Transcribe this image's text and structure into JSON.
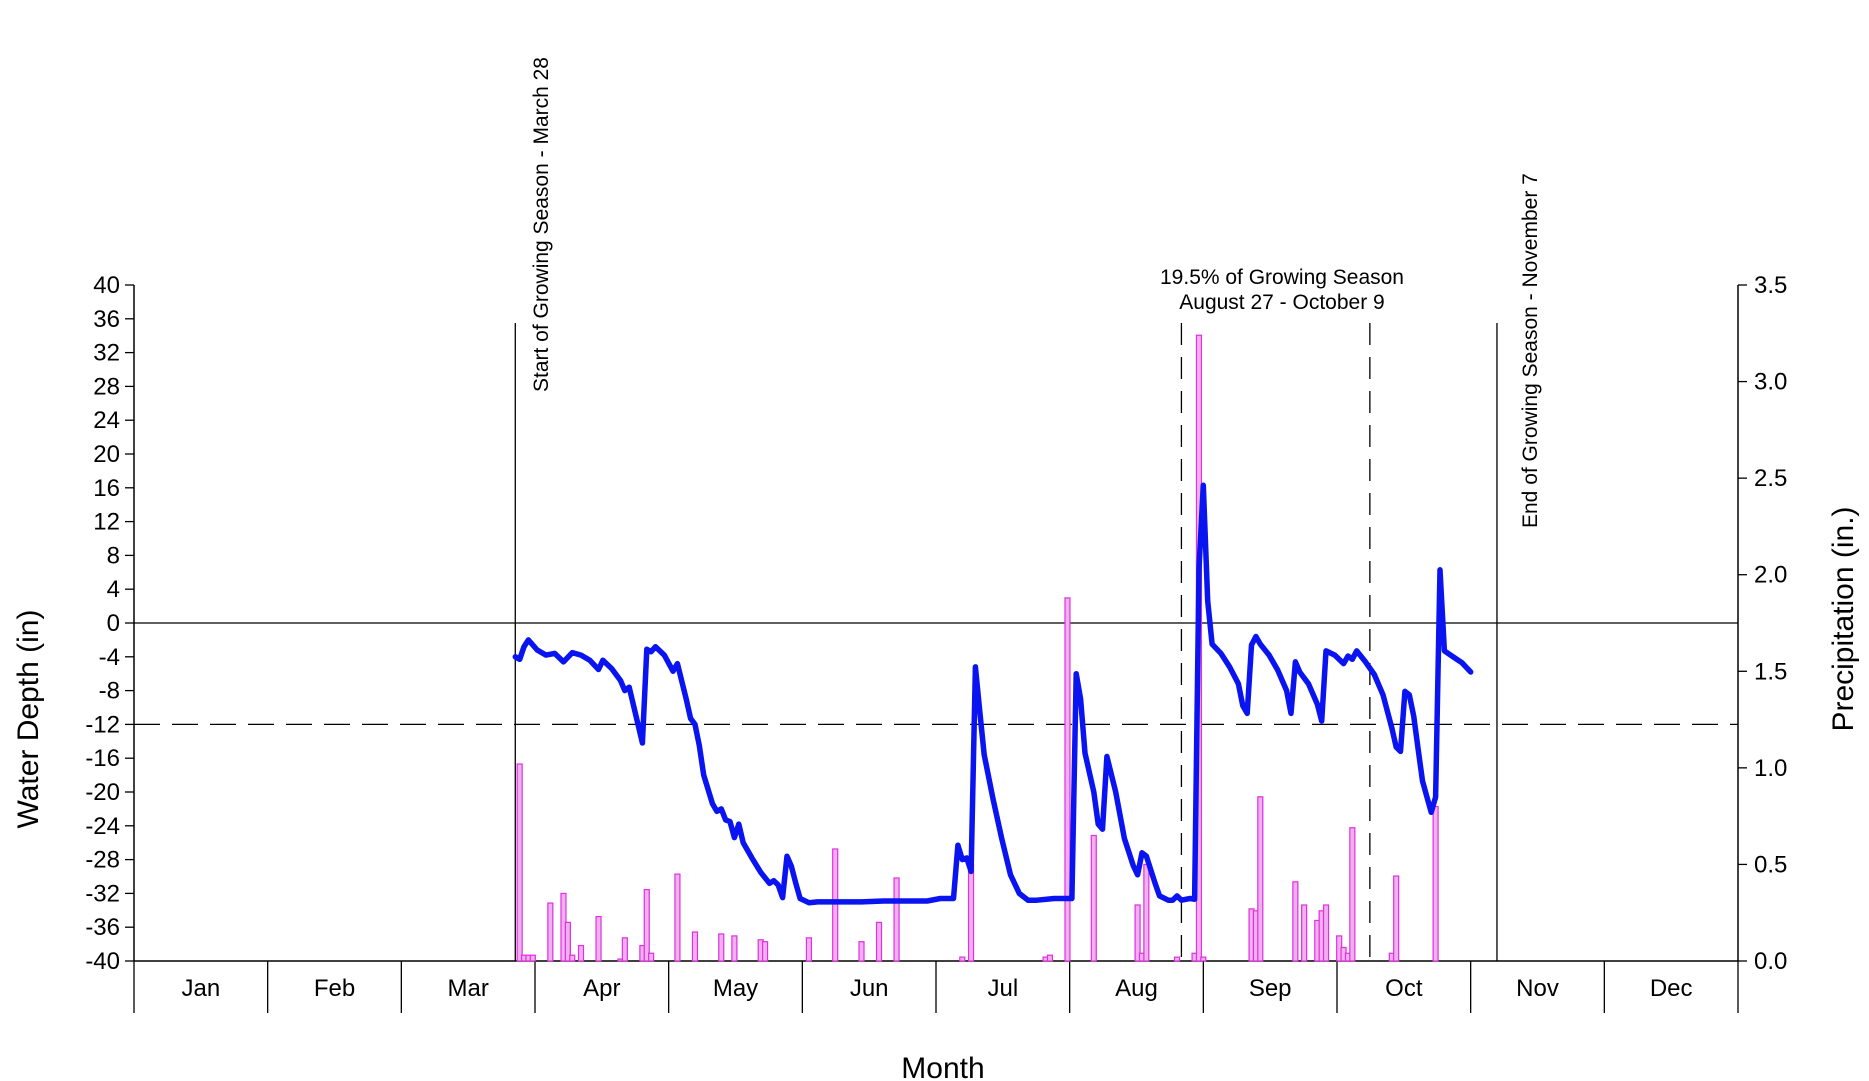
{
  "chart_data": {
    "type": "line",
    "xlabel": "Month",
    "ylabel": "Water Depth (in)",
    "y2label": "Precipitation (in.)",
    "x_domain_days": [
      0,
      366
    ],
    "ylim": [
      -40,
      40
    ],
    "y2lim": [
      0,
      3.5
    ],
    "y_ticks": [
      40,
      36,
      32,
      28,
      24,
      20,
      16,
      12,
      8,
      4,
      0,
      -4,
      -8,
      -12,
      -16,
      -20,
      -24,
      -28,
      -32,
      -36,
      -40
    ],
    "y2_ticks": [
      "3.5",
      "3.0",
      "2.5",
      "2.0",
      "1.5",
      "1.0",
      "0.5",
      "0.0"
    ],
    "months": [
      "Jan",
      "Feb",
      "Mar",
      "Apr",
      "May",
      "Jun",
      "Jul",
      "Aug",
      "Sep",
      "Oct",
      "Nov",
      "Dec"
    ],
    "reference_lines": {
      "zero": 0,
      "threshold": -12
    },
    "annotations": {
      "start": "Start of Growing Season - March 28",
      "end": "End of Growing Season - November 7",
      "period_line1": "19.5% of Growing Season",
      "period_line2": "August 27 - October 9"
    },
    "markers": {
      "start": "2024-03-28",
      "end": "2024-11-07",
      "period_start": "2024-08-27",
      "period_end": "2024-10-09"
    },
    "series": [
      {
        "name": "Water Depth",
        "axis": "left",
        "points": [
          [
            "2024-03-28",
            -4.0
          ],
          [
            "2024-03-29",
            -4.3
          ],
          [
            "2024-03-30",
            -2.8
          ],
          [
            "2024-03-31",
            -2.0
          ],
          [
            "2024-04-02",
            -3.2
          ],
          [
            "2024-04-04",
            -3.8
          ],
          [
            "2024-04-06",
            -3.6
          ],
          [
            "2024-04-08",
            -4.6
          ],
          [
            "2024-04-10",
            -3.5
          ],
          [
            "2024-04-12",
            -3.8
          ],
          [
            "2024-04-14",
            -4.4
          ],
          [
            "2024-04-16",
            -5.5
          ],
          [
            "2024-04-17",
            -4.4
          ],
          [
            "2024-04-19",
            -5.4
          ],
          [
            "2024-04-21",
            -6.8
          ],
          [
            "2024-04-22",
            -8.0
          ],
          [
            "2024-04-23",
            -7.6
          ],
          [
            "2024-04-25",
            -12.0
          ],
          [
            "2024-04-26",
            -14.2
          ],
          [
            "2024-04-27",
            -3.1
          ],
          [
            "2024-04-28",
            -3.4
          ],
          [
            "2024-04-29",
            -2.8
          ],
          [
            "2024-05-01",
            -3.8
          ],
          [
            "2024-05-03",
            -5.7
          ],
          [
            "2024-05-04",
            -4.8
          ],
          [
            "2024-05-06",
            -9.0
          ],
          [
            "2024-05-07",
            -11.3
          ],
          [
            "2024-05-08",
            -12.0
          ],
          [
            "2024-05-09",
            -14.5
          ],
          [
            "2024-05-10",
            -18.0
          ],
          [
            "2024-05-12",
            -21.4
          ],
          [
            "2024-05-13",
            -22.3
          ],
          [
            "2024-05-14",
            -22.0
          ],
          [
            "2024-05-15",
            -23.3
          ],
          [
            "2024-05-16",
            -23.5
          ],
          [
            "2024-05-17",
            -25.4
          ],
          [
            "2024-05-18",
            -23.8
          ],
          [
            "2024-05-19",
            -26.0
          ],
          [
            "2024-05-21",
            -27.8
          ],
          [
            "2024-05-23",
            -29.5
          ],
          [
            "2024-05-25",
            -30.8
          ],
          [
            "2024-05-26",
            -30.5
          ],
          [
            "2024-05-27",
            -31.0
          ],
          [
            "2024-05-28",
            -32.5
          ],
          [
            "2024-05-29",
            -27.6
          ],
          [
            "2024-05-30",
            -28.8
          ],
          [
            "2024-05-31",
            -30.8
          ],
          [
            "2024-06-01",
            -32.6
          ],
          [
            "2024-06-03",
            -33.1
          ],
          [
            "2024-06-05",
            -33.0
          ],
          [
            "2024-06-10",
            -33.0
          ],
          [
            "2024-06-15",
            -33.0
          ],
          [
            "2024-06-20",
            -32.9
          ],
          [
            "2024-06-25",
            -32.9
          ],
          [
            "2024-06-30",
            -32.9
          ],
          [
            "2024-07-03",
            -32.6
          ],
          [
            "2024-07-06",
            -32.6
          ],
          [
            "2024-07-07",
            -26.3
          ],
          [
            "2024-07-08",
            -28.0
          ],
          [
            "2024-07-09",
            -27.8
          ],
          [
            "2024-07-10",
            -29.4
          ],
          [
            "2024-07-11",
            -5.2
          ],
          [
            "2024-07-12",
            -10.5
          ],
          [
            "2024-07-13",
            -15.6
          ],
          [
            "2024-07-15",
            -20.8
          ],
          [
            "2024-07-17",
            -25.5
          ],
          [
            "2024-07-19",
            -29.8
          ],
          [
            "2024-07-21",
            -32.0
          ],
          [
            "2024-07-23",
            -32.8
          ],
          [
            "2024-07-25",
            -32.8
          ],
          [
            "2024-07-29",
            -32.6
          ],
          [
            "2024-08-02",
            -32.6
          ],
          [
            "2024-08-03",
            -6.0
          ],
          [
            "2024-08-04",
            -9.0
          ],
          [
            "2024-08-05",
            -15.4
          ],
          [
            "2024-08-07",
            -20.0
          ],
          [
            "2024-08-08",
            -23.8
          ],
          [
            "2024-08-09",
            -24.4
          ],
          [
            "2024-08-10",
            -15.8
          ],
          [
            "2024-08-12",
            -20.0
          ],
          [
            "2024-08-14",
            -25.5
          ],
          [
            "2024-08-16",
            -28.7
          ],
          [
            "2024-08-17",
            -29.8
          ],
          [
            "2024-08-18",
            -27.2
          ],
          [
            "2024-08-19",
            -27.6
          ],
          [
            "2024-08-21",
            -30.8
          ],
          [
            "2024-08-22",
            -32.3
          ],
          [
            "2024-08-24",
            -32.8
          ],
          [
            "2024-08-25",
            -32.8
          ],
          [
            "2024-08-26",
            -32.3
          ],
          [
            "2024-08-27",
            -32.8
          ],
          [
            "2024-08-28",
            -32.7
          ],
          [
            "2024-08-29",
            -32.6
          ],
          [
            "2024-08-30",
            -32.7
          ],
          [
            "2024-08-31",
            6.5
          ],
          [
            "2024-09-01",
            16.3
          ],
          [
            "2024-09-02",
            2.6
          ],
          [
            "2024-09-03",
            -2.5
          ],
          [
            "2024-09-05",
            -3.6
          ],
          [
            "2024-09-07",
            -5.2
          ],
          [
            "2024-09-09",
            -7.2
          ],
          [
            "2024-09-10",
            -9.8
          ],
          [
            "2024-09-11",
            -10.7
          ],
          [
            "2024-09-12",
            -2.6
          ],
          [
            "2024-09-13",
            -1.6
          ],
          [
            "2024-09-14",
            -2.5
          ],
          [
            "2024-09-16",
            -3.8
          ],
          [
            "2024-09-18",
            -5.6
          ],
          [
            "2024-09-20",
            -8.0
          ],
          [
            "2024-09-21",
            -10.7
          ],
          [
            "2024-09-22",
            -4.6
          ],
          [
            "2024-09-23",
            -5.8
          ],
          [
            "2024-09-25",
            -7.2
          ],
          [
            "2024-09-27",
            -9.6
          ],
          [
            "2024-09-28",
            -11.6
          ],
          [
            "2024-09-29",
            -3.3
          ],
          [
            "2024-10-01",
            -3.8
          ],
          [
            "2024-10-03",
            -4.8
          ],
          [
            "2024-10-04",
            -3.9
          ],
          [
            "2024-10-05",
            -4.3
          ],
          [
            "2024-10-06",
            -3.3
          ],
          [
            "2024-10-08",
            -4.6
          ],
          [
            "2024-10-10",
            -6.1
          ],
          [
            "2024-10-12",
            -8.5
          ],
          [
            "2024-10-14",
            -12.4
          ],
          [
            "2024-10-15",
            -14.7
          ],
          [
            "2024-10-16",
            -15.2
          ],
          [
            "2024-10-17",
            -8.1
          ],
          [
            "2024-10-18",
            -8.5
          ],
          [
            "2024-10-19",
            -11.0
          ],
          [
            "2024-10-20",
            -14.9
          ],
          [
            "2024-10-21",
            -18.7
          ],
          [
            "2024-10-23",
            -22.4
          ],
          [
            "2024-10-24",
            -20.6
          ],
          [
            "2024-10-25",
            6.3
          ],
          [
            "2024-10-26",
            -3.3
          ],
          [
            "2024-10-28",
            -4.0
          ],
          [
            "2024-10-30",
            -4.7
          ],
          [
            "2024-11-01",
            -5.8
          ]
        ]
      },
      {
        "name": "Precipitation",
        "axis": "right",
        "type": "bar",
        "points": [
          [
            "2024-03-29",
            1.02
          ],
          [
            "2024-03-30",
            0.03
          ],
          [
            "2024-03-31",
            0.03
          ],
          [
            "2024-04-01",
            0.03
          ],
          [
            "2024-04-05",
            0.3
          ],
          [
            "2024-04-08",
            0.35
          ],
          [
            "2024-04-09",
            0.2
          ],
          [
            "2024-04-10",
            0.03
          ],
          [
            "2024-04-12",
            0.08
          ],
          [
            "2024-04-16",
            0.23
          ],
          [
            "2024-04-21",
            0.01
          ],
          [
            "2024-04-22",
            0.12
          ],
          [
            "2024-04-26",
            0.08
          ],
          [
            "2024-04-27",
            0.37
          ],
          [
            "2024-04-28",
            0.04
          ],
          [
            "2024-05-04",
            0.45
          ],
          [
            "2024-05-08",
            0.15
          ],
          [
            "2024-05-14",
            0.14
          ],
          [
            "2024-05-17",
            0.13
          ],
          [
            "2024-05-23",
            0.11
          ],
          [
            "2024-05-24",
            0.1
          ],
          [
            "2024-06-03",
            0.12
          ],
          [
            "2024-06-09",
            0.58
          ],
          [
            "2024-06-15",
            0.1
          ],
          [
            "2024-06-19",
            0.2
          ],
          [
            "2024-06-23",
            0.43
          ],
          [
            "2024-07-08",
            0.02
          ],
          [
            "2024-07-10",
            0.5
          ],
          [
            "2024-07-27",
            0.02
          ],
          [
            "2024-07-28",
            0.03
          ],
          [
            "2024-08-01",
            1.88
          ],
          [
            "2024-08-07",
            0.65
          ],
          [
            "2024-08-17",
            0.29
          ],
          [
            "2024-08-18",
            0.04
          ],
          [
            "2024-08-19",
            0.5
          ],
          [
            "2024-08-26",
            0.02
          ],
          [
            "2024-08-30",
            0.04
          ],
          [
            "2024-08-31",
            3.24
          ],
          [
            "2024-09-01",
            0.02
          ],
          [
            "2024-09-12",
            0.27
          ],
          [
            "2024-09-13",
            0.26
          ],
          [
            "2024-09-14",
            0.85
          ],
          [
            "2024-09-22",
            0.41
          ],
          [
            "2024-09-24",
            0.29
          ],
          [
            "2024-09-27",
            0.21
          ],
          [
            "2024-09-28",
            0.26
          ],
          [
            "2024-09-29",
            0.29
          ],
          [
            "2024-10-02",
            0.13
          ],
          [
            "2024-10-03",
            0.07
          ],
          [
            "2024-10-04",
            0.04
          ],
          [
            "2024-10-05",
            0.69
          ],
          [
            "2024-10-14",
            0.04
          ],
          [
            "2024-10-15",
            0.44
          ],
          [
            "2024-10-24",
            0.8
          ]
        ]
      }
    ],
    "colors": {
      "water_depth": "#0a14f0",
      "precipitation": "#e030e0",
      "axes": "#000000"
    },
    "grid": false,
    "legend": "none"
  }
}
